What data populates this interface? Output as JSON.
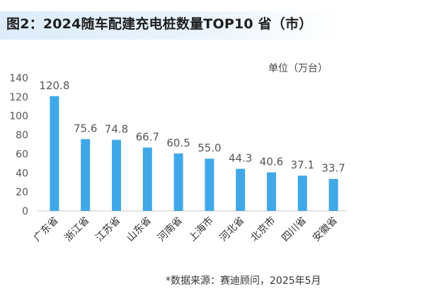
{
  "title": "图2：2024随车配建充电桩数量TOP10 省（市）",
  "unit_label": "单位（万台）",
  "source": "*数据来源：赛迪顾问，2025年5月",
  "colors": {
    "bar": "#41a8e8",
    "axis": "#666666",
    "text": "#555555",
    "title_bg": "#dcecfb"
  },
  "chart_data": {
    "type": "bar",
    "title": "图2：2024随车配建充电桩数量TOP10 省（市）",
    "ylabel": "单位（万台）",
    "xlabel": "",
    "categories": [
      "广东省",
      "浙江省",
      "江苏省",
      "山东省",
      "河南省",
      "上海市",
      "河北省",
      "北京市",
      "四川省",
      "安徽省"
    ],
    "values": [
      120.8,
      75.6,
      74.8,
      66.7,
      60.5,
      55.0,
      44.3,
      40.6,
      37.1,
      33.7
    ],
    "value_labels": [
      "120.8",
      "75.6",
      "74.8",
      "66.7",
      "60.5",
      "55.0",
      "44.3",
      "40.6",
      "37.1",
      "33.7"
    ],
    "ylim": [
      0,
      140
    ],
    "yticks": [
      0,
      20,
      40,
      60,
      80,
      100,
      120,
      140
    ],
    "grid": false,
    "legend": "none"
  }
}
